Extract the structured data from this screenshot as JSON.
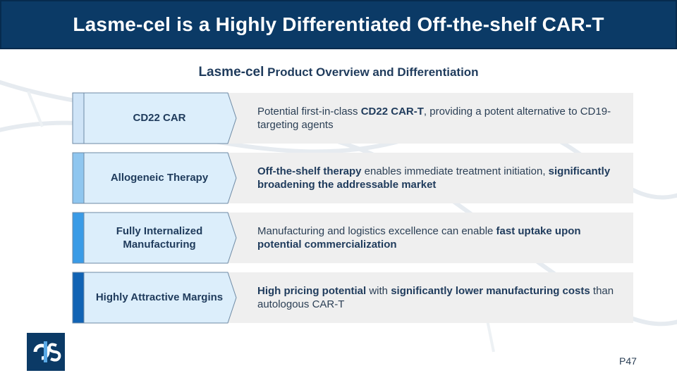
{
  "title": "Lasme-cel is a Highly Differentiated Off-the-shelf CAR-T",
  "subtitle": {
    "lead": "Lasme-cel",
    "rest": " Product Overview and Differentiation"
  },
  "rows": [
    {
      "label": "CD22 CAR",
      "accent": "#cfe4f7",
      "desc": [
        {
          "t": "Potential first-in-class "
        },
        {
          "t": "CD22 CAR-T",
          "b": true
        },
        {
          "t": ", providing a potent alternative to CD19-targeting agents"
        }
      ]
    },
    {
      "label": "Allogeneic Therapy",
      "accent": "#8fc6ef",
      "desc": [
        {
          "t": "Off-the-shelf therapy",
          "b": true
        },
        {
          "t": " enables immediate treatment initiation, "
        },
        {
          "t": "significantly broadening the addressable market",
          "b": true
        }
      ]
    },
    {
      "label": "Fully Internalized Manufacturing",
      "accent": "#3a9be6",
      "desc": [
        {
          "t": "Manufacturing and logistics excellence can enable "
        },
        {
          "t": "fast uptake upon potential commercialization",
          "b": true
        }
      ]
    },
    {
      "label": "Highly Attractive Margins",
      "accent": "#1163b4",
      "desc": [
        {
          "t": "High pricing potential",
          "b": true
        },
        {
          "t": " with "
        },
        {
          "t": "significantly lower manufacturing costs",
          "b": true
        },
        {
          "t": " than autologous CAR-T"
        }
      ]
    }
  ],
  "page_number": "P47",
  "colors": {
    "title_bg": "#0b3a66",
    "chevron_fill": "#dceefb",
    "band": "#efefef"
  },
  "logo_icon": "company-logo-icon"
}
